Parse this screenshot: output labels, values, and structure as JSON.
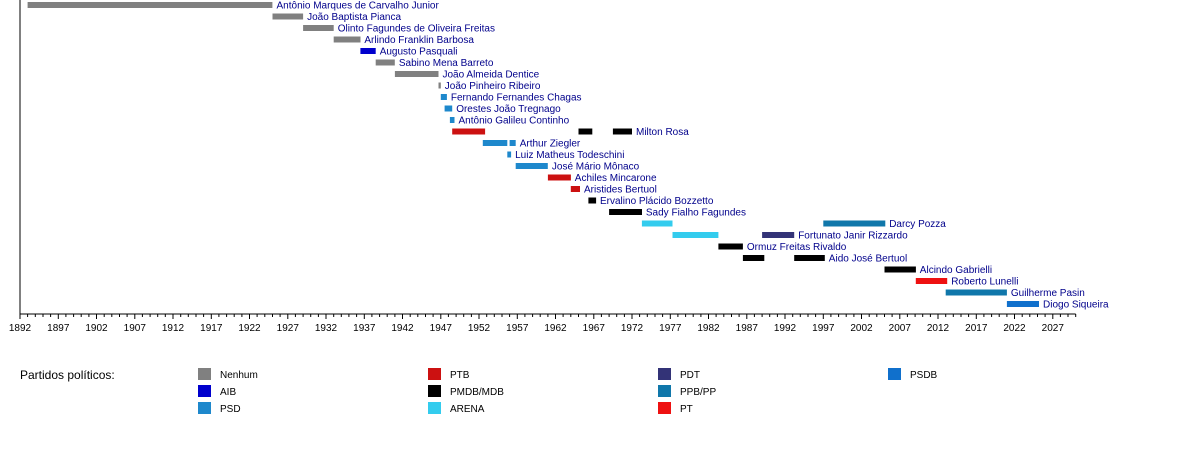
{
  "chart_data": {
    "type": "timeline",
    "x_axis": {
      "min": 1892,
      "max": 2030,
      "major_ticks": [
        1892,
        1897,
        1902,
        1907,
        1912,
        1917,
        1922,
        1927,
        1932,
        1937,
        1942,
        1947,
        1952,
        1957,
        1962,
        1967,
        1972,
        1977,
        1982,
        1987,
        1992,
        1997,
        2002,
        2007,
        2012,
        2017,
        2022,
        2027
      ]
    },
    "rows": [
      {
        "name": "Antônio Marques de Carvalho Junior",
        "terms": [
          [
            1893,
            1925
          ]
        ],
        "party": "Nenhum"
      },
      {
        "name": "João Baptista Pianca",
        "terms": [
          [
            1925,
            1929
          ]
        ],
        "party": "Nenhum"
      },
      {
        "name": "Olinto Fagundes de Oliveira Freitas",
        "terms": [
          [
            1929,
            1933
          ]
        ],
        "party": "Nenhum"
      },
      {
        "name": "Arlindo Franklin Barbosa",
        "terms": [
          [
            1933,
            1936.5
          ]
        ],
        "party": "Nenhum"
      },
      {
        "name": "Augusto Pasquali",
        "terms": [
          [
            1936.5,
            1938.5
          ]
        ],
        "party": "AIB"
      },
      {
        "name": "Sabino Mena Barreto",
        "terms": [
          [
            1938.5,
            1941
          ]
        ],
        "party": "Nenhum"
      },
      {
        "name": "João Almeida Dentice",
        "terms": [
          [
            1941,
            1946.7
          ]
        ],
        "party": "Nenhum"
      },
      {
        "name": "João Pinheiro Ribeiro",
        "terms": [
          [
            1946.7,
            1947
          ]
        ],
        "party": "Nenhum"
      },
      {
        "name": "Fernando Fernandes Chagas",
        "terms": [
          [
            1947,
            1947.8
          ]
        ],
        "party": "PSD"
      },
      {
        "name": "Orestes João Tregnago",
        "terms": [
          [
            1947.5,
            1948.5
          ]
        ],
        "party": "PSD"
      },
      {
        "name": "Antônio Galileu Continho",
        "terms": [
          [
            1948.2,
            1948.8
          ]
        ],
        "party": "PSD"
      },
      {
        "name": "Milton Rosa",
        "terms": [
          [
            1948.5,
            1952.8
          ],
          [
            1965,
            1966.8
          ],
          [
            1969.5,
            1972
          ]
        ],
        "parties": [
          "PTB",
          "PMDB/MDB",
          "PMDB/MDB"
        ]
      },
      {
        "name": "Arthur Ziegler",
        "terms": [
          [
            1952.5,
            1955.7
          ],
          [
            1956,
            1956.8
          ]
        ],
        "party": "PSD"
      },
      {
        "name": "Luiz Matheus Todeschini",
        "terms": [
          [
            1955.7,
            1956.2
          ]
        ],
        "party": "PSD"
      },
      {
        "name": "José Mário Mônaco",
        "terms": [
          [
            1956.8,
            1961
          ]
        ],
        "party": "PSD"
      },
      {
        "name": "Achiles Mincarone",
        "terms": [
          [
            1961,
            1964
          ]
        ],
        "party": "PTB"
      },
      {
        "name": "Aristides Bertuol",
        "terms": [
          [
            1964,
            1965.2
          ]
        ],
        "party": "PTB"
      },
      {
        "name": "Ervalino Plácido Bozzetto",
        "terms": [
          [
            1966.3,
            1967.3
          ]
        ],
        "party": "PMDB/MDB"
      },
      {
        "name": "Sady Fialho Fagundes",
        "terms": [
          [
            1969,
            1973.3
          ]
        ],
        "party": "PMDB/MDB"
      },
      {
        "name": "Darcy Pozza",
        "terms": [
          [
            1973.3,
            1977.3
          ],
          [
            1997,
            2005.1
          ]
        ],
        "parties": [
          "ARENA",
          "PPB/PP"
        ]
      },
      {
        "name": "Fortunato Janir Rizzardo",
        "terms": [
          [
            1977.3,
            1983.3
          ],
          [
            1989,
            1993.2
          ]
        ],
        "parties": [
          "ARENA",
          "PDT"
        ]
      },
      {
        "name": "Ormuz Freitas Rivaldo",
        "terms": [
          [
            1983.3,
            1986.5
          ]
        ],
        "party": "PMDB/MDB"
      },
      {
        "name": "Aido José Bertuol",
        "terms": [
          [
            1986.5,
            1989.3
          ],
          [
            1993.2,
            1997.2
          ]
        ],
        "party": "PMDB/MDB"
      },
      {
        "name": "Alcindo Gabrielli",
        "terms": [
          [
            2005,
            2009.1
          ]
        ],
        "party": "PMDB/MDB"
      },
      {
        "name": "Roberto Lunelli",
        "terms": [
          [
            2009.1,
            2013.2
          ]
        ],
        "party": "PT"
      },
      {
        "name": "Guilherme Pasin",
        "terms": [
          [
            2013,
            2021
          ]
        ],
        "party": "PPB/PP"
      },
      {
        "name": "Diogo Siqueira",
        "terms": [
          [
            2021,
            2025.2
          ]
        ],
        "party": "PSDB"
      }
    ],
    "party_colors": {
      "Nenhum": "#808080",
      "AIB": "#0000cd",
      "PSD": "#1e88cc",
      "PTB": "#cc1111",
      "PMDB/MDB": "#000000",
      "ARENA": "#33ccee",
      "PDT": "#333377",
      "PPB/PP": "#1077aa",
      "PT": "#ee1111",
      "PSDB": "#1070cc"
    },
    "legend": {
      "title": "Partidos políticos:",
      "columns": [
        [
          "Nenhum",
          "AIB",
          "PSD"
        ],
        [
          "PTB",
          "PMDB/MDB",
          "ARENA"
        ],
        [
          "PDT",
          "PPB/PP",
          "PT"
        ],
        [
          "PSDB"
        ]
      ]
    }
  }
}
